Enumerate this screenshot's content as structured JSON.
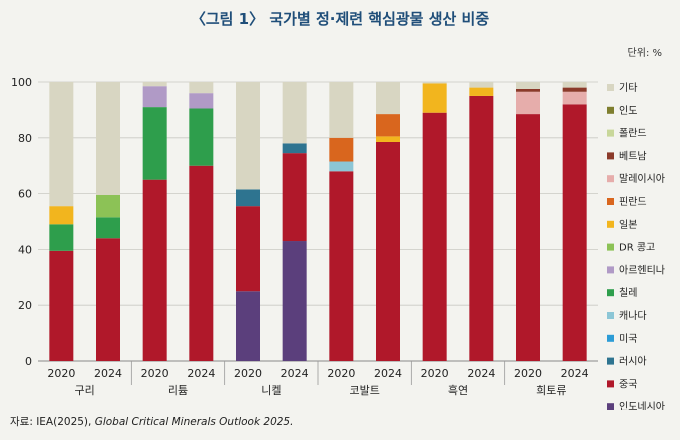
{
  "title": "〈그림 1〉 국가별 정·제련 핵심광물 생산 비중",
  "unit": "단위: %",
  "source": {
    "prefix": "자료: IEA(2025), ",
    "italic": "Global Critical Minerals Outlook 2025."
  },
  "chart_data": {
    "type": "bar",
    "stacked": true,
    "ylim": [
      0,
      100
    ],
    "yticks": [
      0,
      20,
      40,
      60,
      80,
      100
    ],
    "grid": true,
    "legend_position": "right",
    "categories": [
      "2020",
      "2024",
      "2020",
      "2024",
      "2020",
      "2024",
      "2020",
      "2024",
      "2020",
      "2024",
      "2020",
      "2024"
    ],
    "groups": [
      {
        "label": "구리",
        "span": [
          0,
          1
        ]
      },
      {
        "label": "리튬",
        "span": [
          2,
          3
        ]
      },
      {
        "label": "니켈",
        "span": [
          4,
          5
        ]
      },
      {
        "label": "코발트",
        "span": [
          6,
          7
        ]
      },
      {
        "label": "흑연",
        "span": [
          8,
          9
        ]
      },
      {
        "label": "희토류",
        "span": [
          10,
          11
        ]
      }
    ],
    "series": [
      {
        "name": "인도네시아",
        "color": "#5b3f7c",
        "values": [
          0,
          0,
          0,
          0,
          25,
          43,
          0,
          0,
          0,
          0,
          0,
          0
        ]
      },
      {
        "name": "중국",
        "color": "#b0182a",
        "values": [
          39.5,
          44,
          65,
          70,
          30.5,
          31.5,
          68,
          78.5,
          89,
          95,
          88.5,
          92
        ]
      },
      {
        "name": "러시아",
        "color": "#2e7490",
        "values": [
          0,
          0,
          0,
          0,
          6,
          3.5,
          0,
          0,
          0,
          0,
          0,
          0
        ]
      },
      {
        "name": "미국",
        "color": "#2c9cd6",
        "values": [
          0,
          0,
          0,
          0,
          0,
          0,
          0,
          0,
          0,
          0,
          0,
          0
        ]
      },
      {
        "name": "캐나다",
        "color": "#8cc6d6",
        "values": [
          0,
          0,
          0,
          0,
          0,
          0,
          3.5,
          0,
          0,
          0,
          0,
          0
        ]
      },
      {
        "name": "칠레",
        "color": "#2e9e4c",
        "values": [
          9.5,
          7.5,
          26,
          20.5,
          0,
          0,
          0,
          0,
          0,
          0,
          0,
          0
        ]
      },
      {
        "name": "아르헨티나",
        "color": "#b09ac6",
        "values": [
          0,
          0,
          7.5,
          5.5,
          0,
          0,
          0,
          0,
          0,
          0,
          0,
          0
        ]
      },
      {
        "name": "DR 콩고",
        "color": "#8cc256",
        "values": [
          0,
          8,
          0,
          0,
          0,
          0,
          0,
          0,
          0,
          0,
          0,
          0
        ]
      },
      {
        "name": "일본",
        "color": "#f2b51e",
        "values": [
          6.5,
          0,
          0,
          0,
          0,
          0,
          0,
          2,
          10.5,
          3,
          0,
          0
        ]
      },
      {
        "name": "핀란드",
        "color": "#d9661e",
        "values": [
          0,
          0,
          0,
          0,
          0,
          0,
          8.5,
          8,
          0,
          0,
          0,
          0
        ]
      },
      {
        "name": "말레이시아",
        "color": "#e6adab",
        "values": [
          0,
          0,
          0,
          0,
          0,
          0,
          0,
          0,
          0,
          0,
          8,
          4.5
        ]
      },
      {
        "name": "베트남",
        "color": "#8b3a2a",
        "values": [
          0,
          0,
          0,
          0,
          0,
          0,
          0,
          0,
          0,
          0,
          1,
          1.5
        ]
      },
      {
        "name": "폴란드",
        "color": "#c8d79a",
        "values": [
          0,
          0,
          0,
          0,
          0,
          0,
          0,
          0,
          0,
          0,
          0,
          0
        ]
      },
      {
        "name": "인도",
        "color": "#7e7e2e",
        "values": [
          0,
          0,
          0,
          0,
          0,
          0,
          0,
          0,
          0,
          0,
          0,
          0
        ]
      },
      {
        "name": "기타",
        "color": "#d8d6c2",
        "values": [
          44.5,
          40.5,
          1.5,
          4,
          38.5,
          22,
          20,
          11.5,
          0.5,
          2,
          2.5,
          2
        ]
      }
    ]
  }
}
